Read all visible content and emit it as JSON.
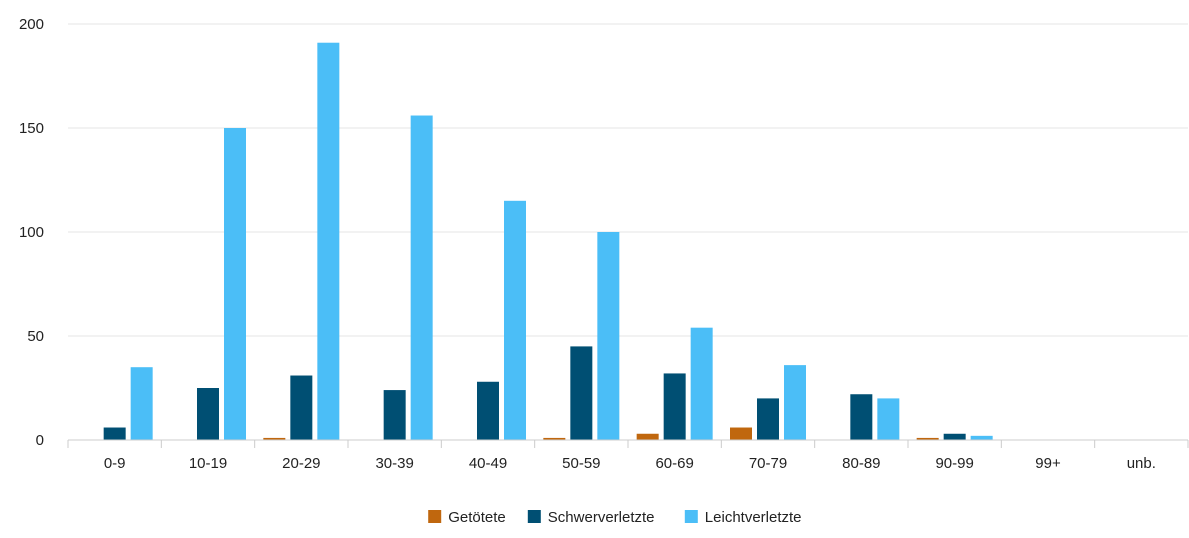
{
  "chart_data": {
    "type": "bar",
    "title": "",
    "xlabel": "",
    "ylabel": "",
    "categories": [
      "0-9",
      "10-19",
      "20-29",
      "30-39",
      "40-49",
      "50-59",
      "60-69",
      "70-79",
      "80-89",
      "90-99",
      "99+",
      "unb."
    ],
    "series": [
      {
        "name": "Getötete",
        "color": "#c0670e",
        "values": [
          0,
          0,
          1,
          0,
          0,
          1,
          3,
          6,
          0,
          1,
          0,
          0
        ]
      },
      {
        "name": "Schwerverletzte",
        "color": "#004f73",
        "values": [
          6,
          25,
          31,
          24,
          28,
          45,
          32,
          20,
          22,
          3,
          0,
          0
        ]
      },
      {
        "name": "Leichtverletzte",
        "color": "#4bbef7",
        "values": [
          35,
          150,
          191,
          156,
          115,
          100,
          54,
          36,
          20,
          2,
          0,
          0
        ]
      }
    ],
    "ylim": [
      0,
      200
    ],
    "yticks": [
      0,
      50,
      100,
      150,
      200
    ],
    "grid": true,
    "legend": "bottom-center",
    "gridline_color": "#e6e6e6",
    "axis_color": "#cccccc"
  }
}
